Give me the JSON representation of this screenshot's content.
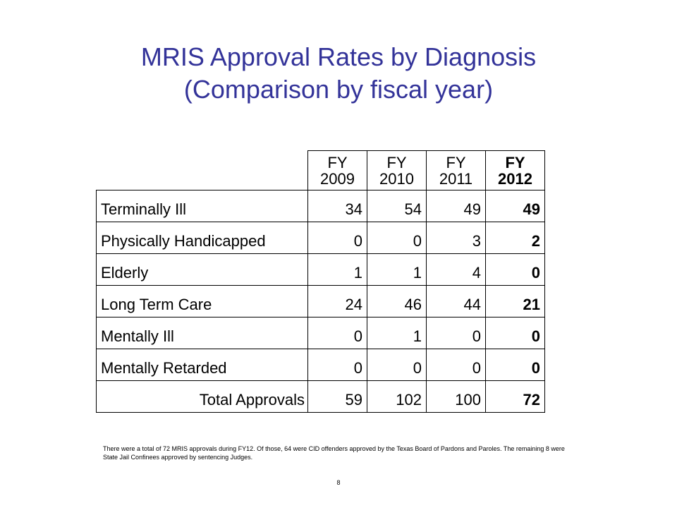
{
  "title": {
    "line1": "MRIS Approval Rates by Diagnosis",
    "line2": "(Comparison by fiscal year)"
  },
  "table": {
    "headers": [
      {
        "line1": "FY",
        "line2": "2009"
      },
      {
        "line1": "FY",
        "line2": "2010"
      },
      {
        "line1": "FY",
        "line2": "2011"
      },
      {
        "line1": "FY",
        "line2": "2012"
      }
    ],
    "rows": [
      {
        "label": "Terminally Ill",
        "values": [
          "34",
          "54",
          "49",
          "49"
        ]
      },
      {
        "label": "Physically Handicapped",
        "values": [
          "0",
          "0",
          "3",
          "2"
        ]
      },
      {
        "label": "Elderly",
        "values": [
          "1",
          "1",
          "4",
          "0"
        ]
      },
      {
        "label": "Long Term Care",
        "values": [
          "24",
          "46",
          "44",
          "21"
        ]
      },
      {
        "label": "Mentally Ill",
        "values": [
          "0",
          "1",
          "0",
          "0"
        ]
      },
      {
        "label": "Mentally Retarded",
        "values": [
          "0",
          "0",
          "0",
          "0"
        ]
      }
    ],
    "total": {
      "label": "Total Approvals",
      "values": [
        "59",
        "102",
        "100",
        "72"
      ]
    }
  },
  "footnote": "There were a total of 72 MRIS approvals during FY12. Of those, 64 were CID offenders approved by the Texas Board of Pardons and Paroles. The remaining 8 were State Jail Confinees approved by sentencing Judges.",
  "page_number": "8",
  "colors": {
    "title": "#333399",
    "text": "#000000",
    "background": "#ffffff"
  }
}
